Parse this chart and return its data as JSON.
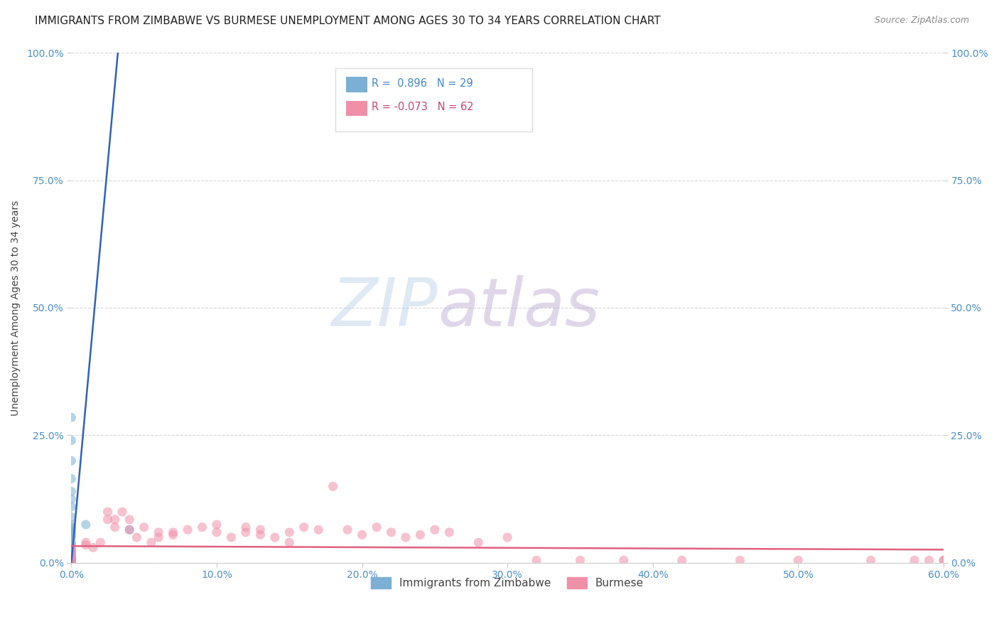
{
  "title": "IMMIGRANTS FROM ZIMBABWE VS BURMESE UNEMPLOYMENT AMONG AGES 30 TO 34 YEARS CORRELATION CHART",
  "source": "Source: ZipAtlas.com",
  "ylabel_label": "Unemployment Among Ages 30 to 34 years",
  "x_ticklabels": [
    "0.0%",
    "10.0%",
    "20.0%",
    "30.0%",
    "40.0%",
    "50.0%",
    "60.0%"
  ],
  "y_ticklabels": [
    "0.0%",
    "25.0%",
    "50.0%",
    "75.0%",
    "100.0%"
  ],
  "x_ticks": [
    0.0,
    0.1,
    0.2,
    0.3,
    0.4,
    0.5,
    0.6
  ],
  "y_ticks": [
    0.0,
    0.25,
    0.5,
    0.75,
    1.0
  ],
  "xlim": [
    0.0,
    0.6
  ],
  "ylim": [
    0.0,
    1.0
  ],
  "watermark_zip": "ZIP",
  "watermark_atlas": "atlas",
  "scatter_blue": "#7bafd4",
  "scatter_pink": "#f090a8",
  "zimbabwe_line_color": "#3060c0",
  "burmese_line_color": "#e06080",
  "background_color": "#ffffff",
  "grid_color": "#cccccc",
  "title_fontsize": 11,
  "axis_label_fontsize": 10,
  "tick_fontsize": 10,
  "tick_color": "#4d8fcc",
  "zimbabwe_R": "0.896",
  "zimbabwe_N": "29",
  "burmese_R": "-0.073",
  "burmese_N": "62",
  "zimbabwe_scatter_x": [
    0.0,
    0.0,
    0.0,
    0.0,
    0.0,
    0.0,
    0.0,
    0.0,
    0.0,
    0.0,
    0.0,
    0.0,
    0.0,
    0.0,
    0.0,
    0.0,
    0.0,
    0.0,
    0.0,
    0.0,
    0.0,
    0.0,
    0.0,
    0.0,
    0.04,
    0.01,
    0.0,
    0.0,
    0.0
  ],
  "zimbabwe_scatter_y": [
    0.285,
    0.24,
    0.2,
    0.165,
    0.14,
    0.125,
    0.11,
    0.09,
    0.075,
    0.07,
    0.065,
    0.06,
    0.055,
    0.05,
    0.04,
    0.035,
    0.025,
    0.02,
    0.015,
    0.01,
    0.005,
    0.003,
    0.001,
    0.0,
    0.065,
    0.075,
    0.02,
    0.005,
    0.0
  ],
  "burmese_scatter_x": [
    0.0,
    0.0,
    0.0,
    0.0,
    0.0,
    0.0,
    0.0,
    0.0,
    0.01,
    0.01,
    0.015,
    0.02,
    0.025,
    0.025,
    0.03,
    0.03,
    0.035,
    0.04,
    0.04,
    0.045,
    0.05,
    0.055,
    0.06,
    0.06,
    0.07,
    0.07,
    0.08,
    0.09,
    0.1,
    0.1,
    0.11,
    0.12,
    0.12,
    0.13,
    0.13,
    0.14,
    0.15,
    0.15,
    0.16,
    0.17,
    0.18,
    0.19,
    0.2,
    0.21,
    0.22,
    0.23,
    0.24,
    0.25,
    0.26,
    0.28,
    0.3,
    0.32,
    0.35,
    0.38,
    0.42,
    0.46,
    0.5,
    0.55,
    0.58,
    0.59,
    0.6,
    0.6
  ],
  "burmese_scatter_y": [
    0.0,
    0.005,
    0.008,
    0.01,
    0.015,
    0.02,
    0.025,
    0.03,
    0.035,
    0.04,
    0.03,
    0.04,
    0.085,
    0.1,
    0.07,
    0.085,
    0.1,
    0.065,
    0.085,
    0.05,
    0.07,
    0.04,
    0.05,
    0.06,
    0.055,
    0.06,
    0.065,
    0.07,
    0.075,
    0.06,
    0.05,
    0.06,
    0.07,
    0.055,
    0.065,
    0.05,
    0.04,
    0.06,
    0.07,
    0.065,
    0.15,
    0.065,
    0.055,
    0.07,
    0.06,
    0.05,
    0.055,
    0.065,
    0.06,
    0.04,
    0.05,
    0.005,
    0.005,
    0.005,
    0.005,
    0.005,
    0.005,
    0.005,
    0.005,
    0.005,
    0.005,
    0.005
  ],
  "zim_line_x": [
    0.0,
    0.032
  ],
  "zim_line_y": [
    0.0,
    1.0
  ],
  "bur_line_x": [
    0.0,
    0.6
  ],
  "bur_line_y": [
    0.033,
    0.026
  ]
}
